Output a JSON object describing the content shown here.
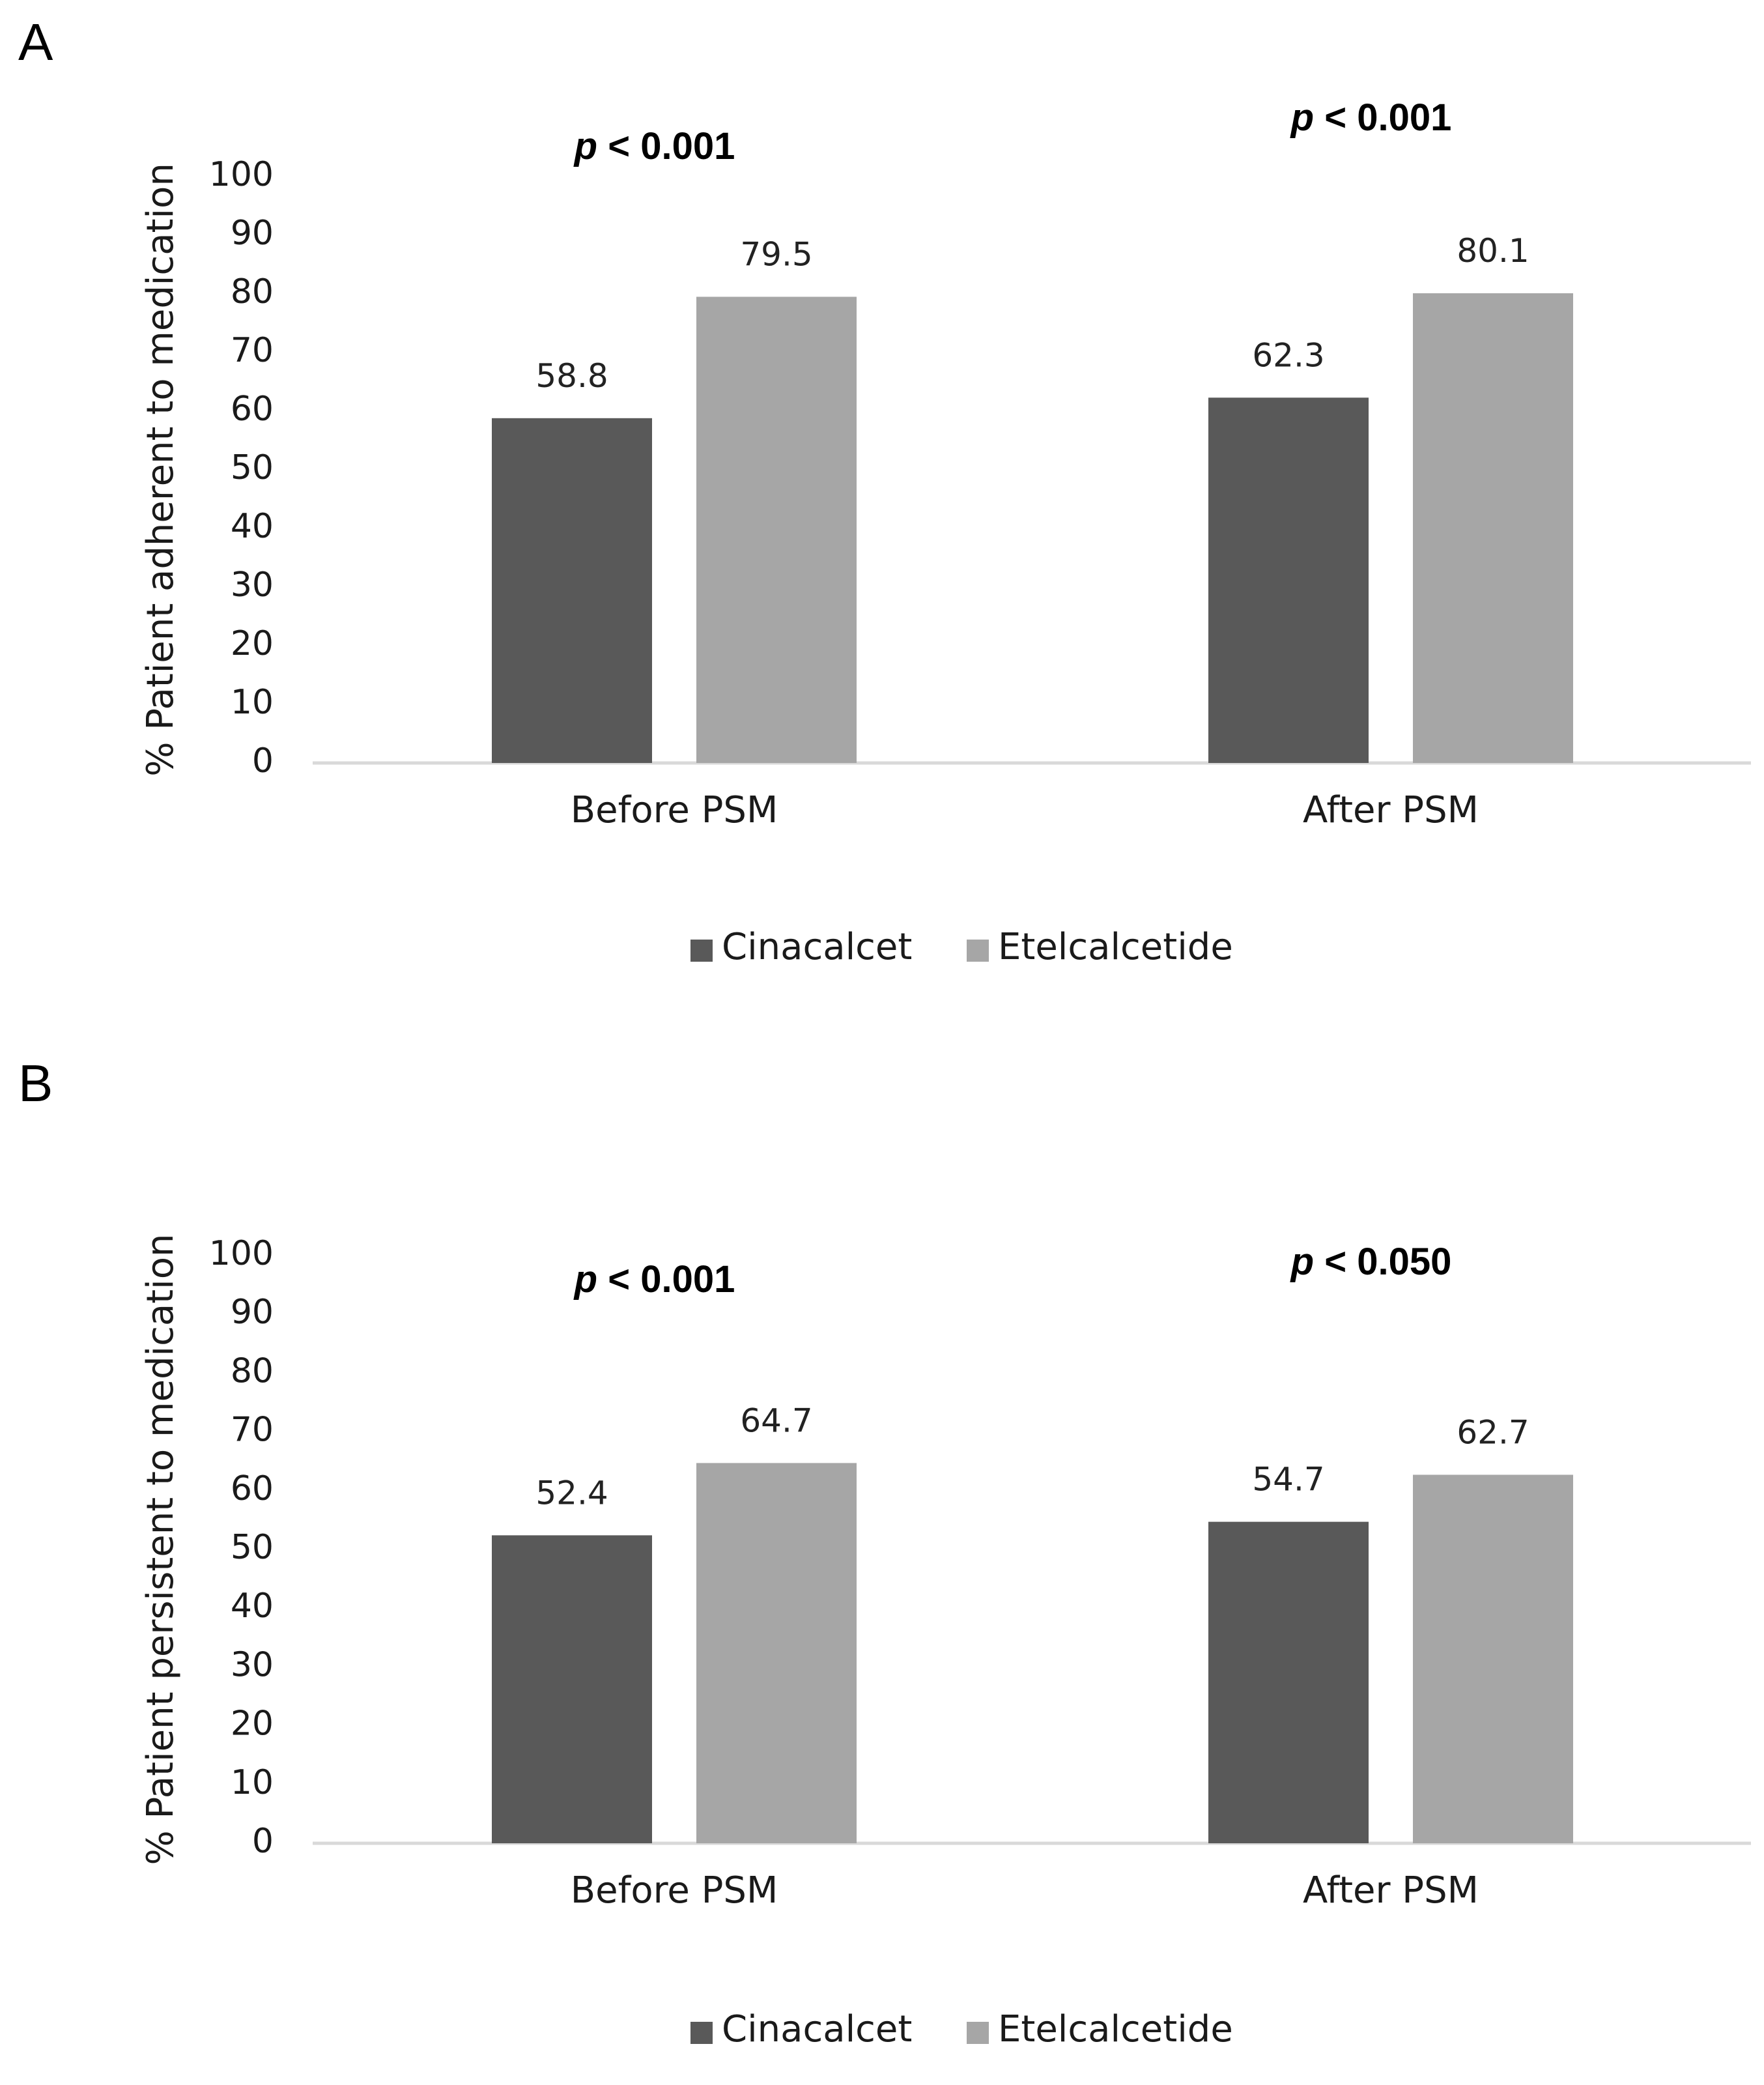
{
  "chart_data": [
    {
      "type": "bar",
      "panel_label": "A",
      "title": "",
      "xlabel": "",
      "ylabel": "% Patient adherent to medication",
      "ylim": [
        0,
        100
      ],
      "yticks": [
        "0",
        "10",
        "20",
        "30",
        "40",
        "50",
        "60",
        "70",
        "80",
        "90",
        "100"
      ],
      "grid": false,
      "categories": [
        "Before PSM",
        "After PSM"
      ],
      "series": [
        {
          "name": "Cinacalcet",
          "color": "#595959",
          "values": [
            58.8,
            62.3
          ],
          "labels": [
            "58.8",
            "62.3"
          ]
        },
        {
          "name": "Etelcalcetide",
          "color": "#a6a6a6",
          "values": [
            79.5,
            80.1
          ],
          "labels": [
            "79.5",
            "80.1"
          ]
        }
      ],
      "annotations": [
        {
          "category": "Before PSM",
          "p_symbol": "p",
          "p_text": " < 0.001"
        },
        {
          "category": "After PSM",
          "p_symbol": "p",
          "p_text": " < 0.001"
        }
      ],
      "legend_position": "bottom"
    },
    {
      "type": "bar",
      "panel_label": "B",
      "title": "",
      "xlabel": "",
      "ylabel": "% Patient persistent to medication",
      "ylim": [
        0,
        100
      ],
      "yticks": [
        "0",
        "10",
        "20",
        "30",
        "40",
        "50",
        "60",
        "70",
        "80",
        "90",
        "100"
      ],
      "grid": false,
      "categories": [
        "Before PSM",
        "After PSM"
      ],
      "series": [
        {
          "name": "Cinacalcet",
          "color": "#595959",
          "values": [
            52.4,
            54.7
          ],
          "labels": [
            "52.4",
            "54.7"
          ]
        },
        {
          "name": "Etelcalcetide",
          "color": "#a6a6a6",
          "values": [
            64.7,
            62.7
          ],
          "labels": [
            "64.7",
            "62.7"
          ]
        }
      ],
      "annotations": [
        {
          "category": "Before PSM",
          "p_symbol": "p",
          "p_text": " < 0.001"
        },
        {
          "category": "After PSM",
          "p_symbol": "p",
          "p_text": " < 0.050"
        }
      ],
      "legend_position": "bottom"
    }
  ],
  "colors": {
    "axis": "#d9d9d9",
    "text": "#1a1a1a"
  }
}
